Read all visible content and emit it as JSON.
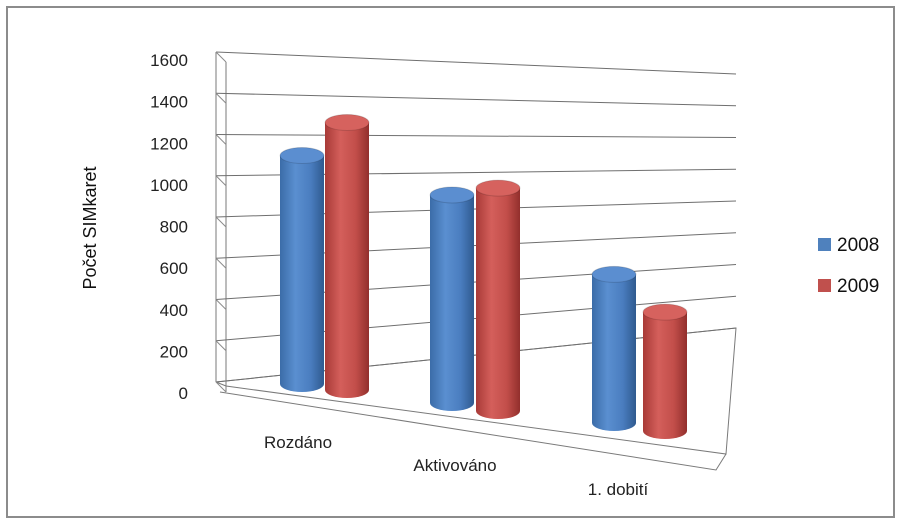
{
  "chart_data": {
    "type": "bar",
    "style": "3d-cylinder",
    "title": "",
    "ylabel": "Počet SIMkaret",
    "xlabel": "",
    "categories": [
      "Rozdáno",
      "Aktivováno",
      "1. dobití"
    ],
    "series": [
      {
        "name": "2008",
        "color": "#4f81bd",
        "values": [
          1230,
          1120,
          800
        ]
      },
      {
        "name": "2009",
        "color": "#c0504d",
        "values": [
          1440,
          1200,
          640
        ]
      }
    ],
    "yticks": [
      "0",
      "200",
      "400",
      "600",
      "800",
      "1000",
      "1200",
      "1400",
      "1600"
    ],
    "ylim": [
      0,
      1600
    ],
    "grid": true,
    "legend_position": "right"
  }
}
